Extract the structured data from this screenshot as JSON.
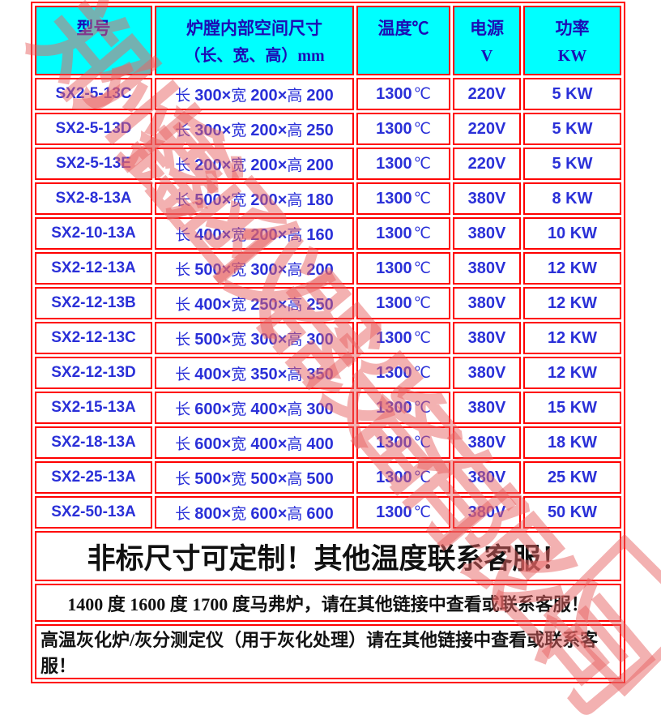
{
  "colors": {
    "header_background": "#00ffff",
    "header_text": "#1c0cb4",
    "cell_text": "#2a30d8",
    "border": "#ff0000",
    "notice_text": "#111111",
    "watermark": "#e86464"
  },
  "table": {
    "headers": {
      "model": [
        "型号",
        ""
      ],
      "chamber": [
        "炉膛内部空间尺寸",
        "（长、宽、高）mm"
      ],
      "temperature": [
        "温度℃",
        ""
      ],
      "supply": [
        "电源",
        "V"
      ],
      "power": [
        "功率",
        "KW"
      ]
    },
    "dim_labels": {
      "length": "长",
      "width": "宽",
      "height": "高",
      "times": "×"
    },
    "rows": [
      {
        "model": "SX2-5-13C",
        "length": "300",
        "width": "200",
        "height": "200",
        "temp": "1300",
        "temp_unit": "℃",
        "voltage": "220V",
        "power": "5 KW"
      },
      {
        "model": "SX2-5-13D",
        "length": "300",
        "width": "200",
        "height": "250",
        "temp": "1300",
        "temp_unit": "℃",
        "voltage": "220V",
        "power": "5 KW"
      },
      {
        "model": "SX2-5-13E",
        "length": "200",
        "width": "200",
        "height": "200",
        "temp": "1300",
        "temp_unit": "℃",
        "voltage": "220V",
        "power": "5 KW"
      },
      {
        "model": "SX2-8-13A",
        "length": "500",
        "width": "200",
        "height": "180",
        "temp": "1300",
        "temp_unit": "℃",
        "voltage": "380V",
        "power": "8 KW"
      },
      {
        "model": "SX2-10-13A",
        "length": "400",
        "width": "200",
        "height": "160",
        "temp": "1300",
        "temp_unit": "℃",
        "voltage": "380V",
        "power": "10 KW"
      },
      {
        "model": "SX2-12-13A",
        "length": "500",
        "width": "300",
        "height": "200",
        "temp": "1300",
        "temp_unit": "℃",
        "voltage": "380V",
        "power": "12 KW"
      },
      {
        "model": "SX2-12-13B",
        "length": "400",
        "width": "250",
        "height": "250",
        "temp": "1300",
        "temp_unit": "℃",
        "voltage": "380V",
        "power": "12 KW"
      },
      {
        "model": "SX2-12-13C",
        "length": "500",
        "width": "300",
        "height": "300",
        "temp": "1300",
        "temp_unit": "℃",
        "voltage": "380V",
        "power": "12 KW"
      },
      {
        "model": "SX2-12-13D",
        "length": "400",
        "width": "350",
        "height": "350",
        "temp": "1300",
        "temp_unit": "℃",
        "voltage": "380V",
        "power": "12 KW"
      },
      {
        "model": "SX2-15-13A",
        "length": "600",
        "width": "400",
        "height": "300",
        "temp": "1300",
        "temp_unit": "℃",
        "voltage": "380V",
        "power": "15 KW"
      },
      {
        "model": "SX2-18-13A",
        "length": "600",
        "width": "400",
        "height": "400",
        "temp": "1300",
        "temp_unit": "℃",
        "voltage": "380V",
        "power": "18 KW"
      },
      {
        "model": "SX2-25-13A",
        "length": "500",
        "width": "500",
        "height": "500",
        "temp": "1300",
        "temp_unit": "℃",
        "voltage": "380V",
        "power": "25 KW"
      },
      {
        "model": "SX2-50-13A",
        "length": "800",
        "width": "600",
        "height": "600",
        "temp": "1300",
        "temp_unit": "℃",
        "voltage": "380V",
        "power": "50 KW"
      }
    ]
  },
  "notices": {
    "custom_size": "非标尺寸可定制！其他温度联系客服！",
    "other_temperatures": "1400 度 1600 度 1700 度马弗炉，请在其他链接中查看或联系客服！",
    "ashing_furnace": "高温灰化炉/灰分测定仪（用于灰化处理）请在其他链接中查看或联系客服！"
  },
  "watermark": {
    "text": "郑州鑫涵仪器设备有限公司"
  }
}
